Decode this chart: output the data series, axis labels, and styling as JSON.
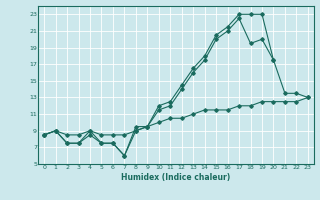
{
  "xlabel": "Humidex (Indice chaleur)",
  "ylabel": "",
  "bg_color": "#cce8ec",
  "line_color": "#1a6b5e",
  "grid_color": "#ffffff",
  "xlim": [
    -0.5,
    23.5
  ],
  "ylim": [
    5,
    24
  ],
  "xticks": [
    0,
    1,
    2,
    3,
    4,
    5,
    6,
    7,
    8,
    9,
    10,
    11,
    12,
    13,
    14,
    15,
    16,
    17,
    18,
    19,
    20,
    21,
    22,
    23
  ],
  "yticks": [
    5,
    7,
    9,
    11,
    13,
    15,
    17,
    19,
    21,
    23
  ],
  "line1_x": [
    0,
    1,
    2,
    3,
    4,
    5,
    6,
    7,
    8,
    9,
    10,
    11,
    12,
    13,
    14,
    15,
    16,
    17,
    18,
    19,
    20,
    21,
    22,
    23
  ],
  "line1_y": [
    8.5,
    9.0,
    7.5,
    7.5,
    8.5,
    7.5,
    7.5,
    6.0,
    9.5,
    9.5,
    12.0,
    12.5,
    14.5,
    16.5,
    18.0,
    20.5,
    21.5,
    23.0,
    23.0,
    23.0,
    17.5,
    13.5,
    13.5,
    13.0
  ],
  "line2_x": [
    0,
    1,
    2,
    3,
    4,
    5,
    6,
    7,
    8,
    9,
    10,
    11,
    12,
    13,
    14,
    15,
    16,
    17,
    18,
    19,
    20
  ],
  "line2_y": [
    8.5,
    9.0,
    7.5,
    7.5,
    9.0,
    7.5,
    7.5,
    6.0,
    9.0,
    9.5,
    11.5,
    12.0,
    14.0,
    16.0,
    17.5,
    20.0,
    21.0,
    22.5,
    19.5,
    20.0,
    17.5
  ],
  "line3_x": [
    0,
    1,
    2,
    3,
    4,
    5,
    6,
    7,
    8,
    9,
    10,
    11,
    12,
    13,
    14,
    15,
    16,
    17,
    18,
    19,
    20,
    21,
    22,
    23
  ],
  "line3_y": [
    8.5,
    9.0,
    8.5,
    8.5,
    9.0,
    8.5,
    8.5,
    8.5,
    9.0,
    9.5,
    10.0,
    10.5,
    10.5,
    11.0,
    11.5,
    11.5,
    11.5,
    12.0,
    12.0,
    12.5,
    12.5,
    12.5,
    12.5,
    13.0
  ]
}
